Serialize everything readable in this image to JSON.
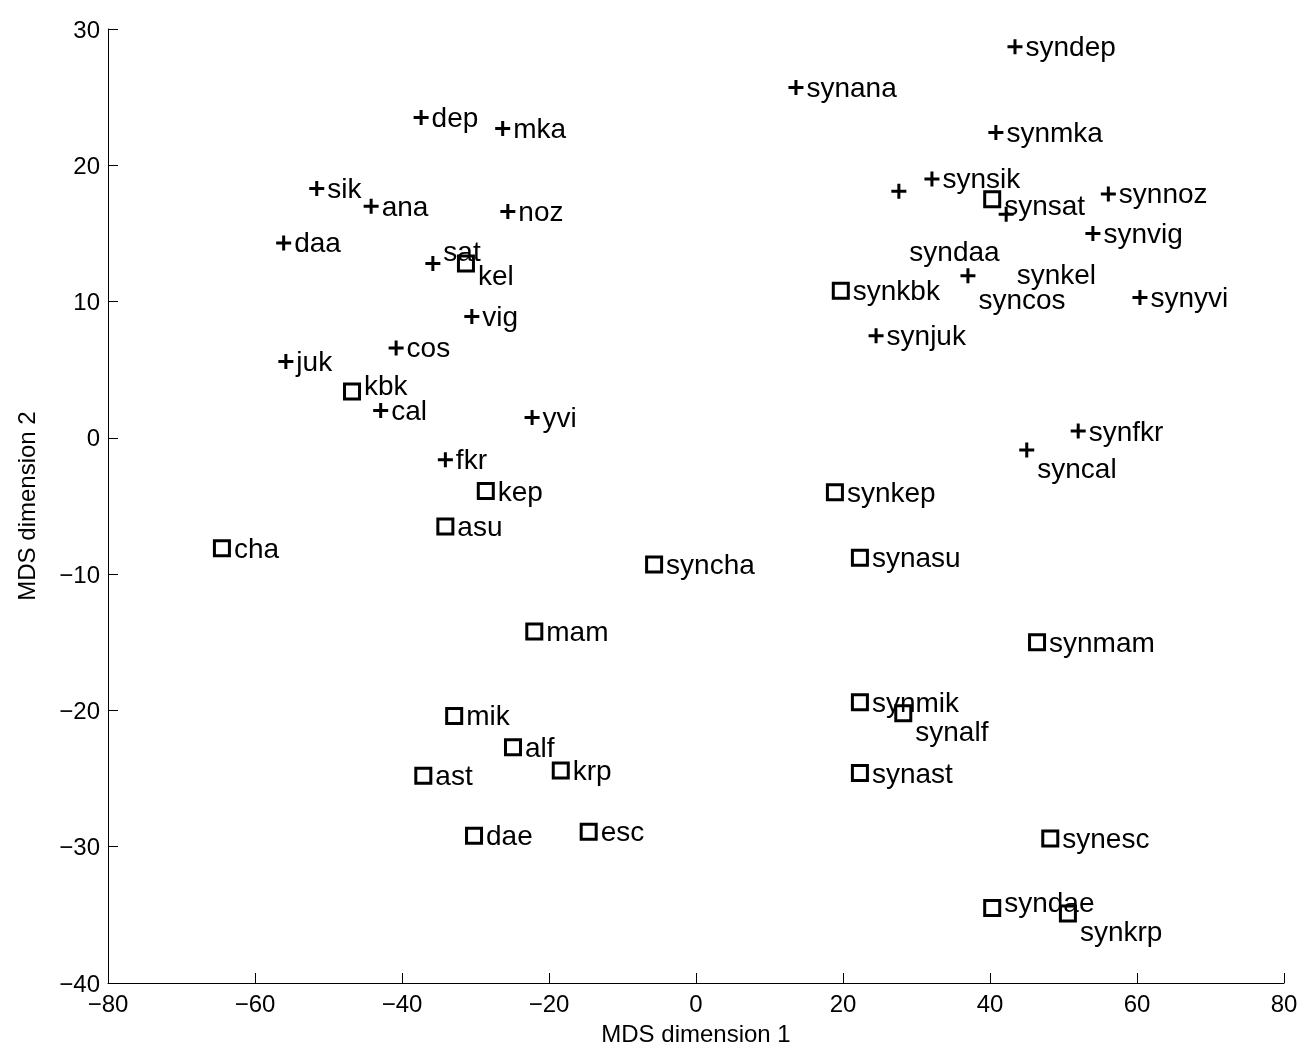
{
  "chart_data": {
    "type": "scatter",
    "xlabel": "MDS dimension 1",
    "ylabel": "MDS dimension 2",
    "xlim": [
      -80,
      80
    ],
    "xticks": [
      {
        "value": -80,
        "label": "−80"
      },
      {
        "value": -60,
        "label": "−60"
      },
      {
        "value": -40,
        "label": "−40"
      },
      {
        "value": -20,
        "label": "−20"
      },
      0,
      20,
      40,
      60,
      80
    ],
    "ylim": [
      -40,
      30
    ],
    "yticks": [
      {
        "value": -40,
        "label": "−40"
      },
      {
        "value": -30,
        "label": "−30"
      },
      {
        "value": -20,
        "label": "−20"
      },
      {
        "value": -10,
        "label": "−10"
      },
      0,
      10,
      20,
      30
    ],
    "grid": false,
    "series": [
      {
        "marker": "cross",
        "color": "#000000",
        "x": [
          -37.4,
          -26.3,
          -51.6,
          -44.2,
          -25.6,
          -56.1,
          -30.5,
          -40.8,
          -22.3,
          -34.1,
          43.4,
          13.6,
          40.8,
          27.6,
          32.1,
          42.2,
          56.1,
          54.0,
          37.0,
          60.4,
          52.0
        ],
        "values": [
          23.5,
          22.7,
          18.3,
          17.0,
          16.6,
          14.3,
          8.9,
          6.6,
          1.5,
          -1.6,
          28.7,
          25.7,
          22.4,
          18.1,
          19.0,
          16.4,
          17.9,
          15.0,
          11.9,
          10.3,
          0.5
        ],
        "value_labels": [
          "dep",
          "mka",
          "sik",
          "ana",
          "noz",
          "daa",
          "vig",
          "cos",
          "yvi",
          "fkr",
          "syndep",
          "synana",
          "synmka",
          "syndaa",
          "synsik",
          "synkel",
          "synnoz",
          "synvig",
          "syncos",
          "synyvi",
          "synfkr"
        ]
      },
      {
        "marker": "cross",
        "color": "#000000",
        "x": [
          -35.8,
          -55.8,
          -42.9,
          24.5,
          45.0
        ],
        "values": [
          12.8,
          5.6,
          2.0,
          7.5,
          -0.9
        ],
        "value_labels": [
          "sat",
          "juk",
          "cal",
          "synjuk",
          "syncal"
        ]
      },
      {
        "marker": "square",
        "color": "#000000",
        "x": [
          -31.3,
          -46.8,
          -34.1,
          -22.0,
          -32.9,
          -37.1,
          -18.4,
          -30.2,
          19.7,
          22.3,
          46.4,
          22.3,
          28.2,
          22.3,
          40.3,
          50.6
        ],
        "values": [
          12.8,
          3.4,
          -6.5,
          -14.2,
          -20.4,
          -24.8,
          -24.4,
          -29.2,
          10.8,
          -8.8,
          -15.0,
          -19.4,
          -20.2,
          -24.6,
          -34.5,
          -34.9
        ],
        "value_labels": [
          "kel",
          "kbk",
          "asu",
          "mam",
          "mik",
          "ast",
          "krp",
          "dae",
          "synkbk",
          "synasu",
          "synmam",
          "synmik",
          "synalf",
          "synast",
          "syndae",
          "synkrp"
        ]
      },
      {
        "marker": "square",
        "color": "#000000",
        "x": [
          -28.6,
          -64.5,
          -5.7,
          -24.9,
          -14.6,
          40.3,
          18.9,
          48.2
        ],
        "values": [
          -3.9,
          -8.1,
          -9.3,
          -22.7,
          -28.9,
          17.5,
          -4.0,
          -29.4
        ],
        "value_labels": [
          "kep",
          "cha",
          "syncha",
          "alf",
          "esc",
          "synsat",
          "synkep",
          "synesc"
        ]
      }
    ]
  }
}
